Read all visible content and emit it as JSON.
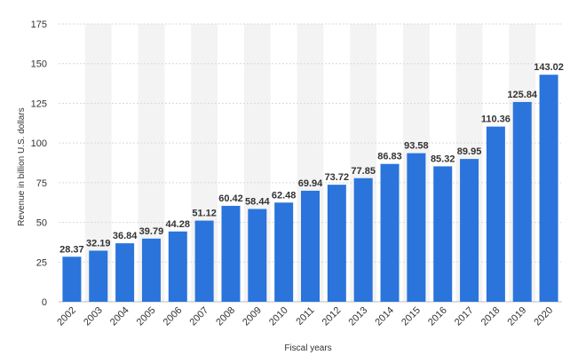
{
  "chart_data": {
    "type": "bar",
    "categories": [
      "2002",
      "2003",
      "2004",
      "2005",
      "2006",
      "2007",
      "2008",
      "2009",
      "2010",
      "2011",
      "2012",
      "2013",
      "2014",
      "2015",
      "2016",
      "2017",
      "2018",
      "2019",
      "2020"
    ],
    "values": [
      28.37,
      32.19,
      36.84,
      39.79,
      44.28,
      51.12,
      60.42,
      58.44,
      62.48,
      69.94,
      73.72,
      77.85,
      86.83,
      93.58,
      85.32,
      89.95,
      110.36,
      125.84,
      143.02
    ],
    "data_labels": [
      "28.37",
      "32.19",
      "36.84",
      "39.79",
      "44.28",
      "51.12",
      "60.42",
      "58.44",
      "62.48",
      "69.94",
      "73.72",
      "77.85",
      "86.83",
      "93.58",
      "85.32",
      "89.95",
      "110.36",
      "125.84",
      "143.02"
    ],
    "xlabel": "Fiscal years",
    "ylabel": "Revenue in billion U.S. dollars",
    "ylim": [
      0,
      175
    ],
    "yticks": [
      "0",
      "25",
      "50",
      "75",
      "100",
      "125",
      "150",
      "175"
    ],
    "grid": true,
    "bar_color": "#2a74dc",
    "band_color": "#f3f3f3"
  }
}
